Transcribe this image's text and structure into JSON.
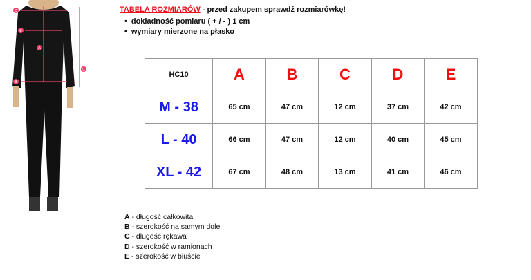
{
  "header": {
    "title_link": "TABELA ROZMIARÓW",
    "title_rest": " - przed zakupem sprawdź rozmiarówkę!",
    "bullets": [
      "dokładność pomiaru ( + / - ) 1 cm",
      "wymiary mierzone na płasko"
    ]
  },
  "table": {
    "corner": "HC10",
    "columns": [
      "A",
      "B",
      "C",
      "D",
      "E"
    ],
    "rows": [
      {
        "size": "M - 38",
        "values": [
          "65 cm",
          "47 cm",
          "12 cm",
          "37 cm",
          "42 cm"
        ]
      },
      {
        "size": "L - 40",
        "values": [
          "66 cm",
          "47 cm",
          "12 cm",
          "40 cm",
          "45 cm"
        ]
      },
      {
        "size": "XL - 42",
        "values": [
          "67 cm",
          "48 cm",
          "13 cm",
          "41 cm",
          "46 cm"
        ]
      }
    ]
  },
  "legend": [
    {
      "key": "A",
      "text": " - długość całkowita"
    },
    {
      "key": "B",
      "text": " - szerokość na samym dole"
    },
    {
      "key": "C",
      "text": " - długość rękawa"
    },
    {
      "key": "D",
      "text": " - szerokość w ramionach"
    },
    {
      "key": "E",
      "text": " - szerokość w biuście"
    }
  ],
  "figure": {
    "markers": [
      "A",
      "B",
      "C",
      "D",
      "E"
    ]
  },
  "colors": {
    "accent_red": "#e8101a",
    "size_blue": "#1a1aee",
    "marker_pink": "#f0406a"
  }
}
